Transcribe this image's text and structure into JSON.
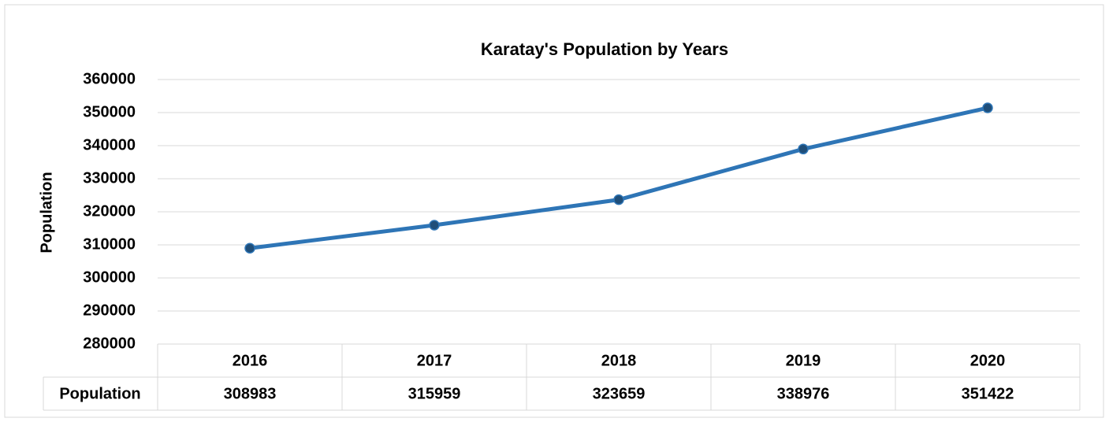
{
  "chart_data": {
    "type": "line",
    "title": "Karatay's Population by Years",
    "y_label": "Population",
    "categories": [
      "2016",
      "2017",
      "2018",
      "2019",
      "2020"
    ],
    "series": [
      {
        "name": "Population",
        "color": "#2e75b6",
        "marker_color": "#1f4e79",
        "values": [
          308983,
          315959,
          323659,
          338976,
          351422
        ]
      }
    ],
    "ylim": [
      280000,
      360000
    ],
    "yticks": [
      280000,
      290000,
      300000,
      310000,
      320000,
      330000,
      340000,
      350000,
      360000
    ],
    "grid": true,
    "data_table": true
  }
}
